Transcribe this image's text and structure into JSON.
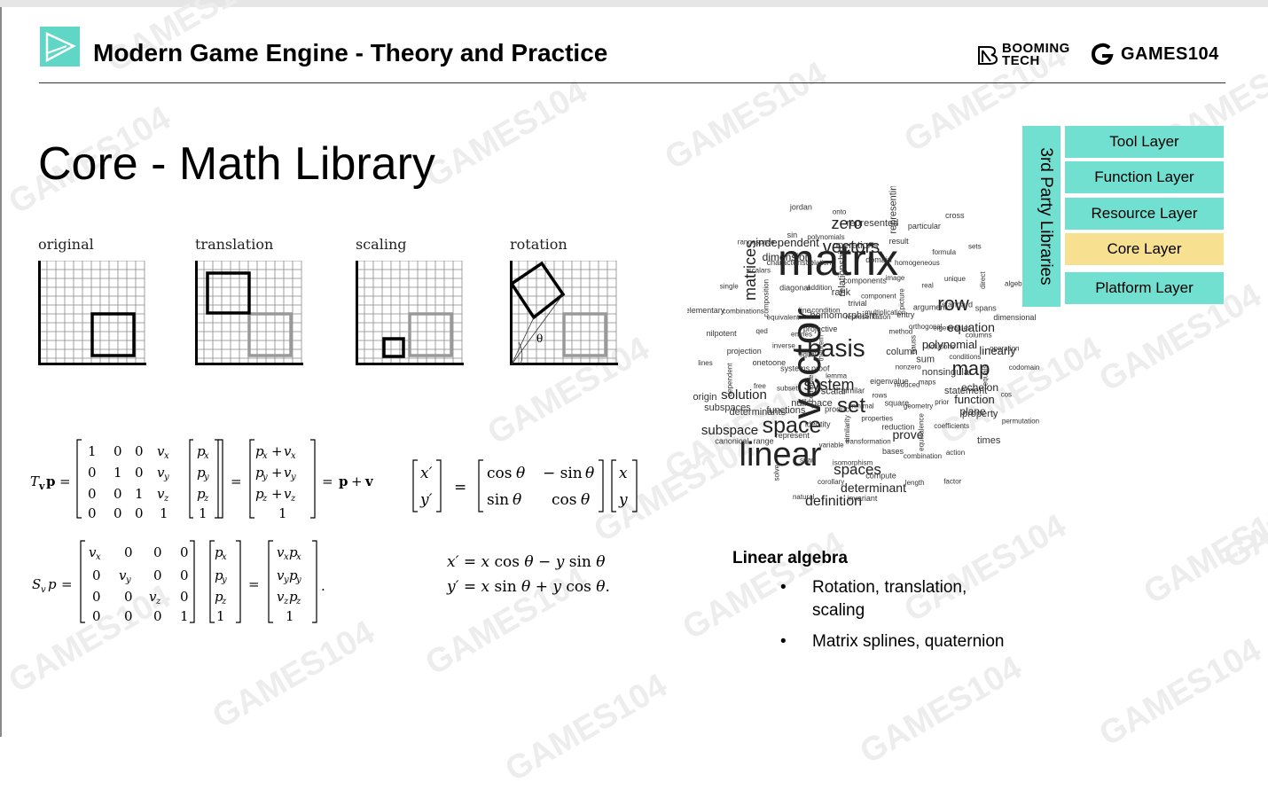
{
  "header": {
    "title": "Modern Game Engine - Theory and Practice",
    "brand_booming": "BOOMING TECH",
    "brand_games": "GAMES104"
  },
  "slide": {
    "title": "Core - Math Library"
  },
  "transform_panels": [
    "original",
    "translation",
    "scaling",
    "rotation"
  ],
  "watermark": "GAMES104",
  "layers": {
    "third_party_label": "3rd Party Libraries",
    "items": [
      "Tool Layer",
      "Function Layer",
      "Resource Layer",
      "Core Layer",
      "Platform Layer"
    ],
    "highlight": "Core Layer",
    "colors": {
      "layer": "#72e0d1",
      "highlight": "#f8e091"
    }
  },
  "linear_algebra": {
    "heading": "Linear algebra",
    "bullets": [
      "Rotation, translation, scaling",
      "Matrix splines, quaternion"
    ]
  },
  "word_cloud": {
    "words": [
      "matrix",
      "vector",
      "linear",
      "basis",
      "space",
      "set",
      "system",
      "map",
      "row",
      "vectors",
      "spaces",
      "matrices",
      "zero",
      "subspace",
      "solution",
      "definition",
      "determinant",
      "equation",
      "linearly",
      "polynomial",
      "prove",
      "function",
      "echelon",
      "plane",
      "dimension",
      "independent",
      "column",
      "lemma",
      "representation",
      "eigenvalue",
      "theorem",
      "method",
      "similar",
      "homomorphism",
      "nonzero",
      "proof",
      "multiplication",
      "rows",
      "projective",
      "gauss",
      "scalar",
      "trivial",
      "reduced",
      "equal",
      "entry",
      "minimal",
      "condition",
      "sum",
      "computer",
      "component",
      "square",
      "entries",
      "orthogonal",
      "product",
      "rank",
      "maps",
      "systems",
      "picture",
      "properties",
      "line",
      "solutions",
      "nullspace",
      "components",
      "geometry",
      "inverse",
      "argument",
      "similarity",
      "addition",
      "nonsingular",
      "subset",
      "image",
      "reduction",
      "equivalent",
      "eigenvalues",
      "identity",
      "relationship",
      "prior",
      "onetoone",
      "real",
      "transformation",
      "diagonal",
      "conditions",
      "functions",
      "domain",
      "equivalence",
      "qed",
      "standard",
      "variable",
      "relation",
      "statement",
      "free",
      "homogeneous",
      "bases",
      "composition",
      "columns",
      "represent",
      "operations",
      "coefficients",
      "projection",
      "unique",
      "isomorphism",
      "characteristic",
      "equals",
      "determinants",
      "result",
      "combination",
      "combinations",
      "spans",
      "span",
      "polynomials",
      "property",
      "dependent",
      "formula",
      "compute",
      "scalars",
      "operation",
      "range",
      "represented",
      "action",
      "nilpotent",
      "direct",
      "corollary",
      "sin",
      "cos",
      "subspaces",
      "particular",
      "length",
      "single",
      "dimensional",
      "solve",
      "onto",
      "times",
      "lines",
      "sets",
      "invariant",
      "rangespace",
      "codomain",
      "canonical",
      "representing",
      "factor",
      "elementary",
      "algebra",
      "natural",
      "jordan",
      "permutation",
      "origin",
      "cross"
    ]
  },
  "equations": {
    "translation": "T_v p = [1 0 0 v_x; 0 1 0 v_y; 0 0 1 v_z; 0 0 0 1][p_x; p_y; p_z; 1] = [p_x + v_x; p_y + v_y; p_z + v_z; 1] = p + v",
    "scaling": "S_v p = [v_x 0 0 0; 0 v_y 0 0; 0 0 v_z 0; 0 0 0 1][p_x; p_y; p_z; 1] = [v_x p_x; v_y p_y; v_z p_z; 1].",
    "rotation_matrix": "[x'; y'] = [cos θ  −sin θ; sin θ  cos θ][x; y]",
    "rotation_eq1": "x' = x cos θ − y sin θ",
    "rotation_eq2": "y' = x sin θ + y cos θ."
  }
}
